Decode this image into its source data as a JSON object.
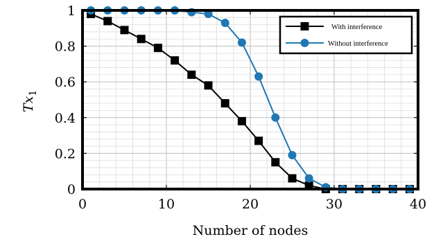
{
  "chart_data": {
    "type": "line",
    "xlabel": "Number of nodes",
    "ylabel": "Tx",
    "ylabel_sub": "1",
    "xlim": [
      0,
      40
    ],
    "ylim": [
      0,
      1
    ],
    "grid": true,
    "legend_position": "top-right",
    "x_ticks": [
      0,
      10,
      20,
      30,
      40
    ],
    "x_tick_labels": [
      "0",
      "10",
      "20",
      "30",
      "40"
    ],
    "y_ticks": [
      0,
      0.2,
      0.4,
      0.6,
      0.8,
      1
    ],
    "y_tick_labels": [
      "0",
      "0.2",
      "0.4",
      "0.6",
      "0.8",
      "1"
    ],
    "x": [
      1,
      3,
      5,
      7,
      9,
      11,
      13,
      15,
      17,
      19,
      21,
      23,
      25,
      27,
      29,
      31,
      33,
      35,
      37,
      39
    ],
    "series": [
      {
        "name": "With interference",
        "color": "#000000",
        "marker": "square",
        "values": [
          0.98,
          0.94,
          0.89,
          0.84,
          0.79,
          0.72,
          0.64,
          0.58,
          0.48,
          0.38,
          0.27,
          0.15,
          0.06,
          0.02,
          0.0,
          0.0,
          0.0,
          0.0,
          0.0,
          0.0
        ]
      },
      {
        "name": "Without interference",
        "color": "#1f77b4",
        "marker": "circle",
        "values": [
          1.0,
          1.0,
          1.0,
          1.0,
          1.0,
          1.0,
          0.99,
          0.98,
          0.93,
          0.82,
          0.63,
          0.4,
          0.19,
          0.06,
          0.01,
          0.0,
          0.0,
          0.0,
          0.0,
          0.0
        ]
      }
    ]
  }
}
